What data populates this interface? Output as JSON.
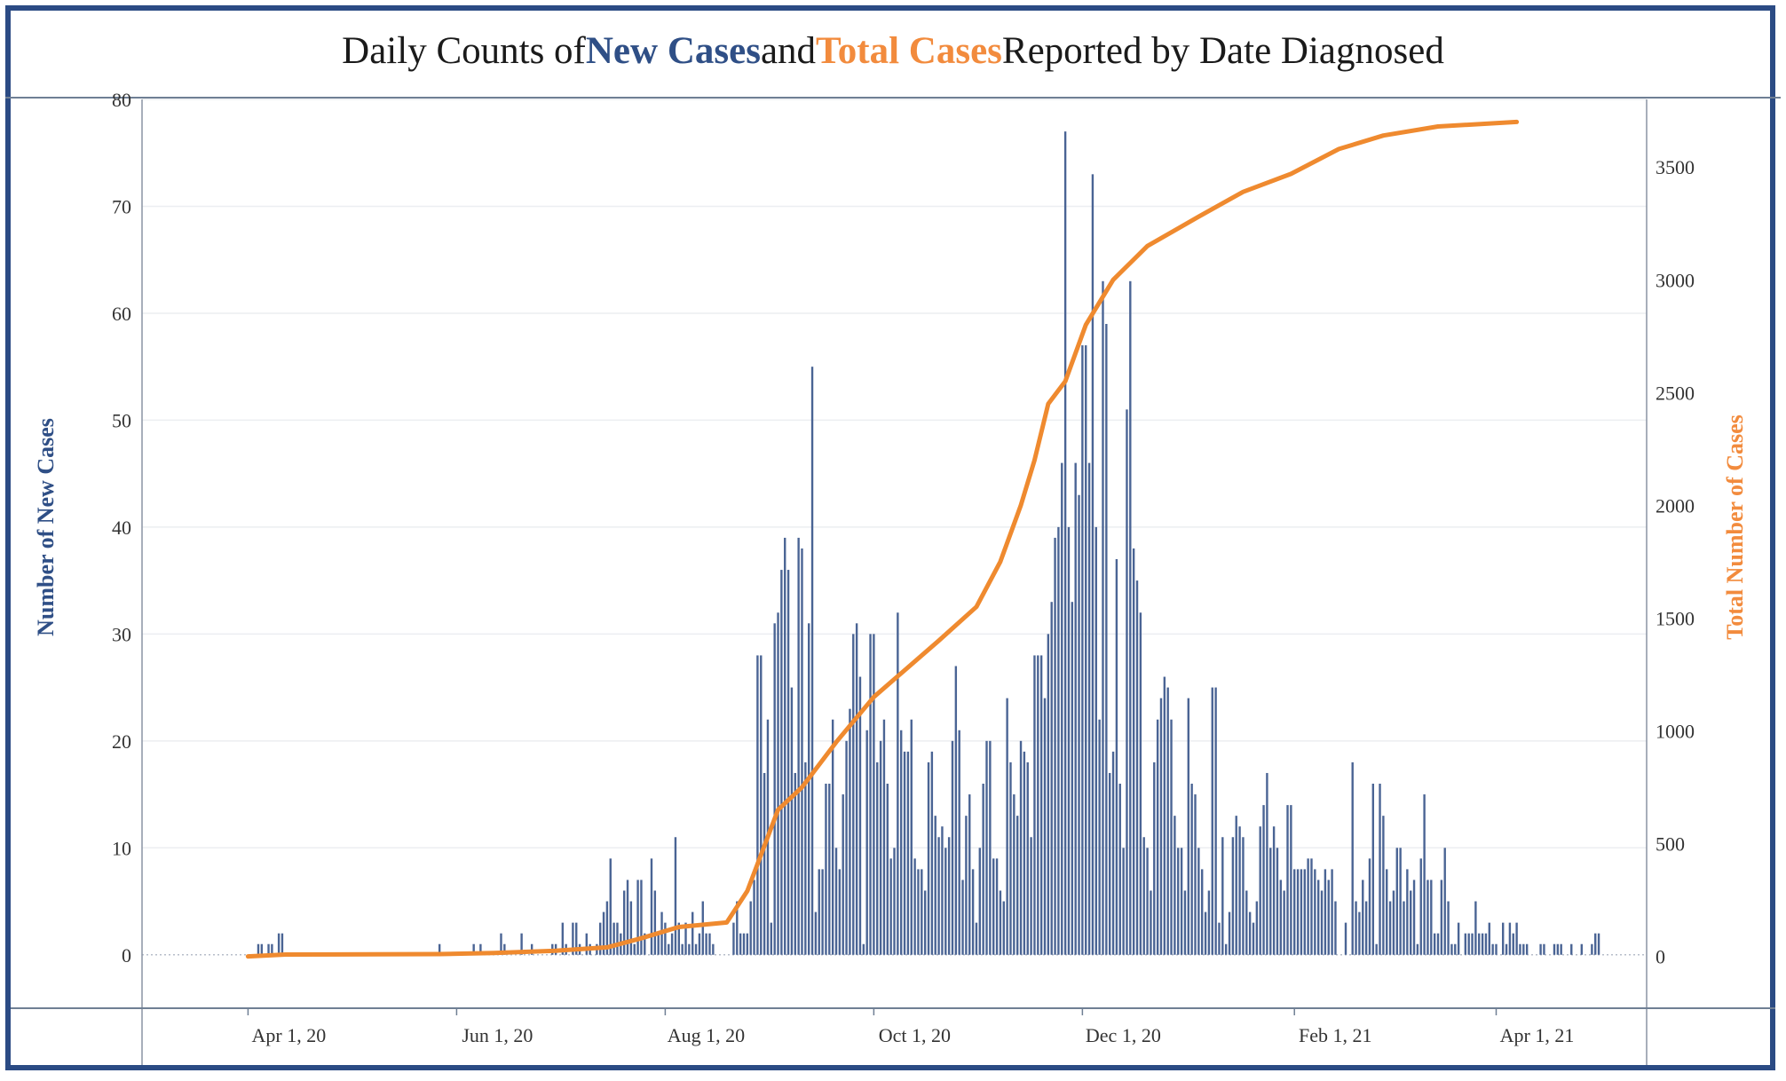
{
  "title": {
    "part1": "Daily Counts of ",
    "part2": "New Cases",
    "part3": " and ",
    "part4": "Total Cases",
    "part5": " Reported by Date Diagnosed"
  },
  "colors": {
    "bars": "#4a6494",
    "line": "#ef8a2f",
    "left_title": "#2f4f86",
    "right_title": "#f28b3d"
  },
  "chart_data": {
    "type": "bar",
    "x_start": "2020-04-01",
    "x_end": "2021-04-07",
    "xlim": [
      "2020-03-01",
      "2021-05-15"
    ],
    "xticks": [
      {
        "date": "2020-04-01",
        "label": "Apr 1, 20"
      },
      {
        "date": "2020-06-01",
        "label": "Jun 1, 20"
      },
      {
        "date": "2020-08-01",
        "label": "Aug 1, 20"
      },
      {
        "date": "2020-10-01",
        "label": "Oct 1, 20"
      },
      {
        "date": "2020-12-01",
        "label": "Dec 1, 20"
      },
      {
        "date": "2021-02-01",
        "label": "Feb 1, 21"
      },
      {
        "date": "2021-04-01",
        "label": "Apr 1, 21"
      }
    ],
    "ylabel": "Number of New Cases",
    "ylim": [
      -5,
      80
    ],
    "yticks": [
      0,
      10,
      20,
      30,
      40,
      50,
      60,
      70,
      80
    ],
    "y2label": "Total Number of Cases",
    "y2lim": [
      -230,
      3800
    ],
    "y2ticks": [
      0,
      500,
      1000,
      1500,
      2000,
      2500,
      3000,
      3500
    ],
    "grid": true,
    "series": [
      {
        "role": "bar",
        "axis": "left",
        "values": [
          0,
          0,
          0,
          1,
          1,
          0,
          1,
          1,
          0,
          2,
          2,
          0,
          0,
          0,
          0,
          0,
          0,
          0,
          0,
          0,
          0,
          0,
          0,
          0,
          0,
          0,
          0,
          0,
          0,
          0,
          0,
          0,
          0,
          0,
          0,
          0,
          0,
          0,
          0,
          0,
          0,
          0,
          0,
          0,
          0,
          0,
          0,
          0,
          0,
          0,
          0,
          0,
          0,
          0,
          0,
          0,
          1,
          0,
          0,
          0,
          0,
          0,
          0,
          0,
          0,
          0,
          1,
          0,
          1,
          0,
          0,
          0,
          0,
          0,
          2,
          1,
          0,
          0,
          0,
          0,
          2,
          0,
          0,
          1,
          0,
          0,
          0,
          0,
          0,
          1,
          1,
          0,
          3,
          1,
          0,
          3,
          3,
          1,
          0,
          2,
          1,
          0,
          1,
          3,
          4,
          5,
          9,
          3,
          3,
          2,
          6,
          7,
          5,
          1,
          7,
          7,
          2,
          0,
          9,
          6,
          2,
          4,
          3,
          1,
          2,
          11,
          3,
          1,
          3,
          1,
          4,
          1,
          2,
          5,
          2,
          2,
          1,
          0,
          0,
          0,
          0,
          0,
          3,
          5,
          2,
          2,
          2,
          5,
          7,
          28,
          28,
          17,
          22,
          3,
          31,
          32,
          36,
          39,
          36,
          25,
          17,
          39,
          38,
          18,
          31,
          55,
          4,
          8,
          8,
          16,
          16,
          22,
          10,
          8,
          15,
          20,
          23,
          30,
          31,
          26,
          1,
          21,
          30,
          30,
          18,
          20,
          22,
          16,
          9,
          10,
          32,
          21,
          19,
          19,
          22,
          9,
          8,
          8,
          6,
          18,
          19,
          13,
          11,
          12,
          10,
          11,
          20,
          27,
          21,
          7,
          13,
          15,
          8,
          3,
          10,
          16,
          20,
          20,
          9,
          9,
          6,
          5,
          24,
          18,
          15,
          13,
          20,
          19,
          18,
          11,
          28,
          28,
          28,
          24,
          30,
          33,
          39,
          40,
          46,
          77,
          40,
          33,
          46,
          43,
          57,
          57,
          46,
          73,
          40,
          22,
          63,
          59,
          17,
          19,
          37,
          16,
          10,
          51,
          63,
          38,
          35,
          32,
          11,
          10,
          6,
          18,
          22,
          24,
          26,
          25,
          22,
          13,
          10,
          10,
          6,
          24,
          16,
          15,
          10,
          8,
          4,
          6,
          25,
          25,
          3,
          11,
          1,
          4,
          11,
          13,
          12,
          11,
          6,
          4,
          3,
          5,
          12,
          14,
          17,
          10,
          12,
          10,
          7,
          6,
          14,
          14,
          8,
          8,
          8,
          8,
          9,
          9,
          8,
          7,
          6,
          8,
          7,
          8,
          5,
          0,
          0,
          3,
          0,
          18,
          5,
          4,
          7,
          5,
          9,
          16,
          1,
          16,
          13,
          8,
          5,
          6,
          10,
          10,
          5,
          8,
          6,
          7,
          1,
          9,
          15,
          7,
          7,
          2,
          2,
          7,
          10,
          5,
          1,
          1,
          3,
          0,
          2,
          2,
          2,
          5,
          2,
          2,
          2,
          3,
          1,
          1,
          0,
          3,
          1,
          3,
          2,
          3,
          1,
          1,
          1,
          0,
          0,
          0,
          1,
          1,
          0,
          0,
          1,
          1,
          1,
          0,
          0,
          1,
          0,
          0,
          1,
          0,
          0,
          1,
          2,
          2
        ]
      },
      {
        "role": "line",
        "axis": "right",
        "cumulative": [
          {
            "date": "2020-04-01",
            "y": 0
          },
          {
            "date": "2020-04-12",
            "y": 8
          },
          {
            "date": "2020-05-27",
            "y": 10
          },
          {
            "date": "2020-06-12",
            "y": 15
          },
          {
            "date": "2020-06-30",
            "y": 25
          },
          {
            "date": "2020-07-15",
            "y": 40
          },
          {
            "date": "2020-07-25",
            "y": 80
          },
          {
            "date": "2020-08-05",
            "y": 130
          },
          {
            "date": "2020-08-19",
            "y": 150
          },
          {
            "date": "2020-08-25",
            "y": 290
          },
          {
            "date": "2020-09-03",
            "y": 650
          },
          {
            "date": "2020-09-10",
            "y": 750
          },
          {
            "date": "2020-09-20",
            "y": 950
          },
          {
            "date": "2020-10-01",
            "y": 1150
          },
          {
            "date": "2020-10-20",
            "y": 1400
          },
          {
            "date": "2020-10-31",
            "y": 1550
          },
          {
            "date": "2020-11-07",
            "y": 1750
          },
          {
            "date": "2020-11-13",
            "y": 2000
          },
          {
            "date": "2020-11-17",
            "y": 2200
          },
          {
            "date": "2020-11-21",
            "y": 2450
          },
          {
            "date": "2020-11-26",
            "y": 2550
          },
          {
            "date": "2020-12-02",
            "y": 2800
          },
          {
            "date": "2020-12-10",
            "y": 3000
          },
          {
            "date": "2020-12-20",
            "y": 3150
          },
          {
            "date": "2021-01-04",
            "y": 3280
          },
          {
            "date": "2021-01-17",
            "y": 3390
          },
          {
            "date": "2021-01-31",
            "y": 3470
          },
          {
            "date": "2021-02-14",
            "y": 3580
          },
          {
            "date": "2021-02-27",
            "y": 3640
          },
          {
            "date": "2021-03-15",
            "y": 3680
          },
          {
            "date": "2021-04-07",
            "y": 3700
          }
        ]
      }
    ]
  }
}
